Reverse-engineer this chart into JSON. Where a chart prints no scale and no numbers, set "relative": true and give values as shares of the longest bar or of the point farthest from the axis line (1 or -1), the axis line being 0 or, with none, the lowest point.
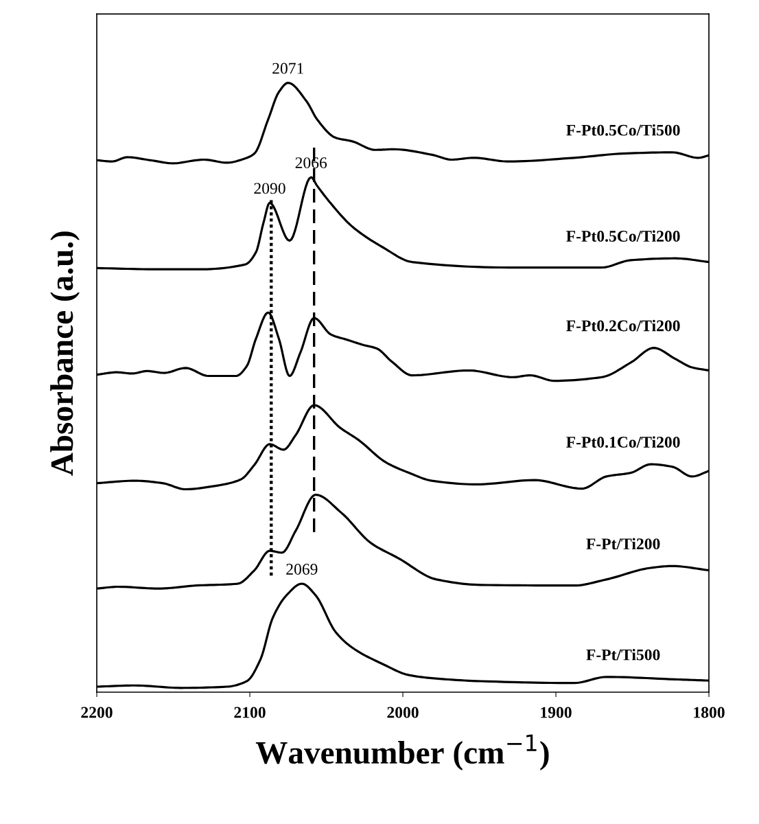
{
  "chart_data": {
    "type": "line",
    "relative": true,
    "xlabel": "Wavenumber (cm$^{−1}$)",
    "ylabel": "Absorbance (a.u.)",
    "xlim": [
      2200,
      1800
    ],
    "xticks": [
      2200,
      2100,
      2000,
      1900,
      1800
    ],
    "series": [
      {
        "name": "F-Pt0.5Co/Ti500",
        "color": "#000000",
        "x": [
          2200,
          2190,
          2180,
          2165,
          2150,
          2135,
          2130,
          2115,
          2103,
          2097,
          2088,
          2081,
          2075,
          2063,
          2056,
          2044,
          2033,
          2018,
          2006,
          1981,
          1968,
          1954,
          1931,
          1888,
          1856,
          1824,
          1807,
          1800
        ],
        "values": [
          0.873,
          0.871,
          0.878,
          0.873,
          0.868,
          0.873,
          0.874,
          0.869,
          0.876,
          0.884,
          0.94,
          0.985,
          1.0,
          0.97,
          0.94,
          0.91,
          0.904,
          0.89,
          0.891,
          0.882,
          0.874,
          0.877,
          0.871,
          0.877,
          0.884,
          0.886,
          0.877,
          0.881
        ]
      },
      {
        "name": "F-Pt0.5Co/Ti200",
        "color": "#000000",
        "x": [
          2200,
          2160,
          2133,
          2103,
          2096,
          2091,
          2087,
          2074,
          2060,
          2056,
          2048,
          2033,
          2013,
          1994,
          1931,
          1870,
          1851,
          1822,
          1800
        ],
        "values": [
          0.696,
          0.694,
          0.694,
          0.702,
          0.722,
          0.771,
          0.803,
          0.741,
          0.845,
          0.831,
          0.805,
          0.764,
          0.73,
          0.706,
          0.697,
          0.697,
          0.709,
          0.712,
          0.706
        ]
      },
      {
        "name": "F-Pt0.2Co/Ti200",
        "color": "#000000",
        "x": [
          2200,
          2187,
          2177,
          2167,
          2156,
          2142,
          2127,
          2109,
          2102,
          2096,
          2088,
          2081,
          2074,
          2067,
          2058,
          2047,
          2036,
          2026,
          2017,
          2007,
          1994,
          1957,
          1928,
          1917,
          1901,
          1870,
          1851,
          1836,
          1822,
          1811,
          1800
        ],
        "values": [
          0.521,
          0.525,
          0.523,
          0.527,
          0.524,
          0.532,
          0.519,
          0.519,
          0.535,
          0.58,
          0.623,
          0.58,
          0.519,
          0.557,
          0.614,
          0.587,
          0.578,
          0.57,
          0.564,
          0.542,
          0.52,
          0.528,
          0.517,
          0.52,
          0.511,
          0.517,
          0.541,
          0.565,
          0.547,
          0.533,
          0.528
        ]
      },
      {
        "name": "F-Pt0.1Co/Ti200",
        "color": "#000000",
        "x": [
          2200,
          2175,
          2157,
          2142,
          2124,
          2106,
          2097,
          2087,
          2078,
          2070,
          2058,
          2041,
          2029,
          2011,
          1996,
          1981,
          1952,
          1914,
          1883,
          1867,
          1851,
          1838,
          1824,
          1811,
          1800
        ],
        "values": [
          0.343,
          0.347,
          0.343,
          0.333,
          0.338,
          0.349,
          0.373,
          0.407,
          0.398,
          0.422,
          0.471,
          0.434,
          0.414,
          0.377,
          0.36,
          0.347,
          0.341,
          0.348,
          0.334,
          0.354,
          0.36,
          0.374,
          0.37,
          0.354,
          0.363
        ]
      },
      {
        "name": "F-Pt/Ti200",
        "color": "#000000",
        "x": [
          2200,
          2186,
          2160,
          2135,
          2108,
          2097,
          2087,
          2079,
          2070,
          2057,
          2040,
          2021,
          2003,
          1978,
          1949,
          1888,
          1867,
          1838,
          1824,
          1800
        ],
        "values": [
          0.17,
          0.173,
          0.17,
          0.175,
          0.178,
          0.2,
          0.232,
          0.229,
          0.265,
          0.324,
          0.294,
          0.245,
          0.22,
          0.185,
          0.176,
          0.175,
          0.185,
          0.204,
          0.207,
          0.2
        ]
      },
      {
        "name": "F-Pt/Ti500",
        "color": "#000000",
        "x": [
          2200,
          2175,
          2145,
          2115,
          2102,
          2093,
          2085,
          2076,
          2066,
          2057,
          2044,
          2033,
          2013,
          1996,
          1981,
          1949,
          1888,
          1867,
          1822,
          1800
        ],
        "values": [
          0.009,
          0.011,
          0.007,
          0.009,
          0.018,
          0.054,
          0.122,
          0.159,
          0.178,
          0.159,
          0.099,
          0.073,
          0.046,
          0.028,
          0.023,
          0.018,
          0.015,
          0.025,
          0.021,
          0.019
        ]
      }
    ],
    "ref_lines": [
      {
        "axis": "x",
        "value": 2086,
        "line_style": "dotted",
        "color": "#000000"
      },
      {
        "axis": "x",
        "value": 2058,
        "line_style": "dashed",
        "color": "#000000"
      }
    ],
    "annotations": [
      {
        "text": "2071",
        "x": 2075,
        "y": 1.0
      },
      {
        "text": "2066",
        "x": 2060,
        "y": 0.845
      },
      {
        "text": "2090",
        "x": 2087,
        "y": 0.803
      },
      {
        "text": "2069",
        "x": 2066,
        "y": 0.178
      }
    ]
  }
}
